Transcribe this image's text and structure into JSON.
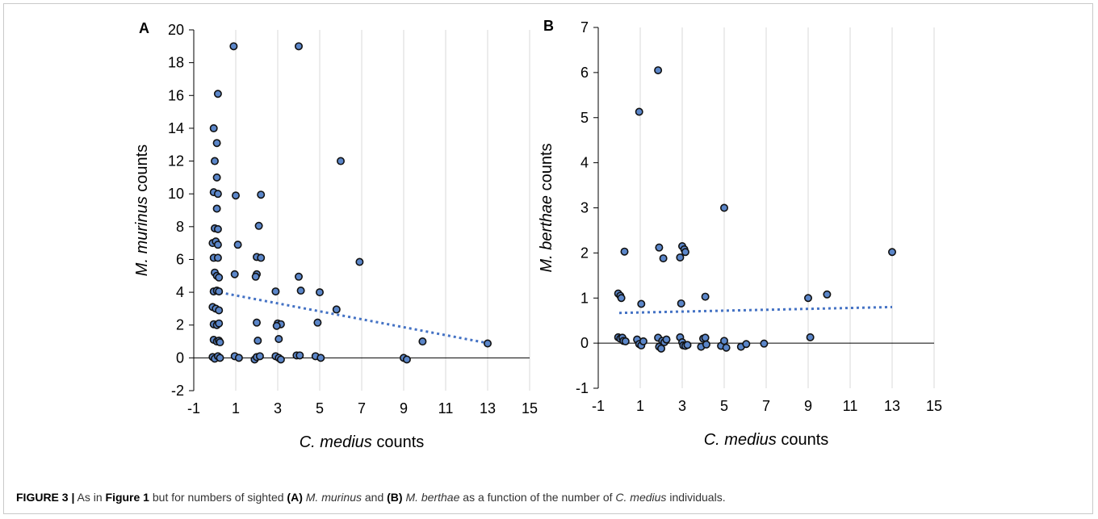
{
  "caption": {
    "label": "FIGURE 3 |",
    "p1": " As in ",
    "fig_ref": "Figure 1",
    "p2": " but for numbers of sighted ",
    "a": "(A)",
    "sp1": "M. murinus",
    "p3": " and ",
    "b": "(B)",
    "sp2": "M. berthae",
    "p4": " as a function of the number of ",
    "sp3": "C. medius",
    "p5": " individuals."
  },
  "colors": {
    "marker_fill": "#5b86c9",
    "marker_stroke": "#111111",
    "trend": "#4472c4",
    "grid": "#d9d9d9"
  },
  "chart_data": [
    {
      "panel": "A",
      "type": "scatter",
      "xlabel_italic": "C. medius",
      "xlabel_rest": " counts",
      "ylabel_italic": "M. murinus",
      "ylabel_rest": " counts",
      "xlim": [
        -1,
        15
      ],
      "ylim": [
        -2,
        20
      ],
      "xticks": [
        -1,
        1,
        3,
        5,
        7,
        9,
        11,
        13,
        15
      ],
      "yticks": [
        -2,
        0,
        2,
        4,
        6,
        8,
        10,
        12,
        14,
        16,
        18,
        20
      ],
      "grid": "vertical",
      "trendline": {
        "style": "dotted",
        "x": [
          0,
          13
        ],
        "y": [
          4.05,
          0.9
        ]
      },
      "points": [
        [
          0.9,
          19
        ],
        [
          4.0,
          19
        ],
        [
          0.15,
          16.1
        ],
        [
          -0.05,
          14
        ],
        [
          0.1,
          13.1
        ],
        [
          0.0,
          12
        ],
        [
          0.1,
          11
        ],
        [
          -0.05,
          10.1
        ],
        [
          0.15,
          10
        ],
        [
          1.0,
          9.9
        ],
        [
          2.2,
          9.95
        ],
        [
          6.0,
          12
        ],
        [
          0.1,
          9.1
        ],
        [
          0.0,
          7.9
        ],
        [
          0.15,
          7.85
        ],
        [
          2.1,
          8.05
        ],
        [
          -0.1,
          7.0
        ],
        [
          0.05,
          7.1
        ],
        [
          0.15,
          6.9
        ],
        [
          1.1,
          6.9
        ],
        [
          6.9,
          5.85
        ],
        [
          -0.05,
          6.1
        ],
        [
          0.15,
          6.1
        ],
        [
          2.0,
          6.15
        ],
        [
          2.2,
          6.1
        ],
        [
          0.0,
          5.2
        ],
        [
          0.1,
          5.0
        ],
        [
          0.2,
          4.9
        ],
        [
          0.95,
          5.1
        ],
        [
          2.0,
          5.1
        ],
        [
          1.95,
          4.95
        ],
        [
          4.0,
          4.95
        ],
        [
          -0.05,
          4.05
        ],
        [
          0.1,
          4.1
        ],
        [
          0.2,
          4.05
        ],
        [
          2.9,
          4.05
        ],
        [
          4.1,
          4.1
        ],
        [
          5.0,
          4.0
        ],
        [
          -0.1,
          3.1
        ],
        [
          0.05,
          3.0
        ],
        [
          0.2,
          2.9
        ],
        [
          5.8,
          2.95
        ],
        [
          -0.05,
          2.05
        ],
        [
          0.1,
          2.0
        ],
        [
          0.2,
          2.1
        ],
        [
          2.0,
          2.15
        ],
        [
          3.0,
          2.1
        ],
        [
          3.15,
          2.05
        ],
        [
          2.95,
          1.95
        ],
        [
          4.9,
          2.15
        ],
        [
          -0.05,
          1.1
        ],
        [
          0.1,
          1.0
        ],
        [
          0.2,
          1.05
        ],
        [
          0.25,
          0.95
        ],
        [
          2.05,
          1.05
        ],
        [
          3.05,
          1.15
        ],
        [
          9.9,
          1.0
        ],
        [
          13.0,
          0.88
        ],
        [
          -0.1,
          0.05
        ],
        [
          0.0,
          -0.05
        ],
        [
          0.15,
          0.1
        ],
        [
          0.25,
          0.0
        ],
        [
          0.95,
          0.1
        ],
        [
          1.15,
          0.0
        ],
        [
          1.9,
          -0.1
        ],
        [
          2.0,
          0.05
        ],
        [
          2.15,
          0.1
        ],
        [
          2.9,
          0.1
        ],
        [
          3.05,
          0.0
        ],
        [
          3.15,
          -0.1
        ],
        [
          3.9,
          0.15
        ],
        [
          4.05,
          0.15
        ],
        [
          4.8,
          0.1
        ],
        [
          5.05,
          0.0
        ],
        [
          9.0,
          0.0
        ],
        [
          9.15,
          -0.1
        ]
      ]
    },
    {
      "panel": "B",
      "type": "scatter",
      "xlabel_italic": "C. medius",
      "xlabel_rest": " counts",
      "ylabel_italic": "M. berthae",
      "ylabel_rest": " counts",
      "xlim": [
        -1,
        15
      ],
      "ylim": [
        -1,
        7
      ],
      "xticks": [
        -1,
        1,
        3,
        5,
        7,
        9,
        11,
        13,
        15
      ],
      "yticks": [
        -1,
        0,
        1,
        2,
        3,
        4,
        5,
        6,
        7
      ],
      "grid": "vertical",
      "trendline": {
        "style": "dotted",
        "x": [
          0,
          13
        ],
        "y": [
          0.67,
          0.8
        ]
      },
      "points": [
        [
          1.85,
          6.05
        ],
        [
          0.95,
          5.13
        ],
        [
          5.0,
          3.0
        ],
        [
          0.25,
          2.03
        ],
        [
          1.9,
          2.12
        ],
        [
          2.1,
          1.88
        ],
        [
          3.0,
          2.15
        ],
        [
          3.1,
          2.08
        ],
        [
          3.15,
          2.02
        ],
        [
          2.9,
          1.9
        ],
        [
          13.0,
          2.02
        ],
        [
          -0.05,
          1.1
        ],
        [
          0.05,
          1.05
        ],
        [
          0.1,
          1.0
        ],
        [
          1.05,
          0.87
        ],
        [
          2.95,
          0.88
        ],
        [
          4.1,
          1.03
        ],
        [
          9.0,
          1.0
        ],
        [
          9.9,
          1.08
        ],
        [
          -0.05,
          0.13
        ],
        [
          0.05,
          0.1
        ],
        [
          0.15,
          0.12
        ],
        [
          0.2,
          0.05
        ],
        [
          0.3,
          0.04
        ],
        [
          0.85,
          0.08
        ],
        [
          0.95,
          -0.02
        ],
        [
          1.05,
          -0.05
        ],
        [
          1.15,
          0.04
        ],
        [
          1.85,
          0.12
        ],
        [
          1.9,
          -0.08
        ],
        [
          2.0,
          -0.12
        ],
        [
          2.05,
          0.05
        ],
        [
          2.15,
          0.02
        ],
        [
          2.25,
          0.08
        ],
        [
          2.9,
          0.13
        ],
        [
          3.0,
          0.02
        ],
        [
          3.05,
          -0.05
        ],
        [
          3.15,
          -0.06
        ],
        [
          3.25,
          -0.04
        ],
        [
          3.9,
          -0.08
        ],
        [
          4.0,
          0.1
        ],
        [
          4.1,
          0.12
        ],
        [
          4.15,
          -0.03
        ],
        [
          4.85,
          -0.06
        ],
        [
          5.0,
          0.05
        ],
        [
          5.1,
          -0.1
        ],
        [
          5.8,
          -0.08
        ],
        [
          6.05,
          -0.02
        ],
        [
          6.9,
          -0.01
        ],
        [
          9.1,
          0.13
        ]
      ]
    }
  ]
}
